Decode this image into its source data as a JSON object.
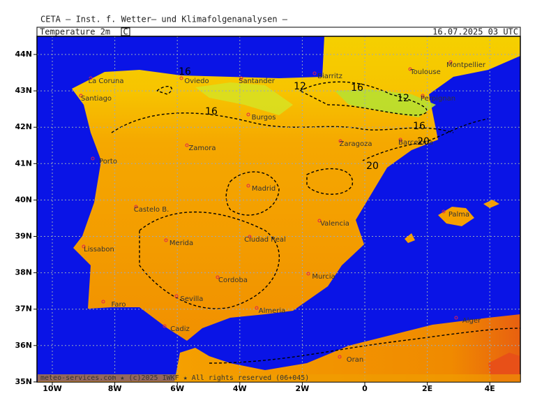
{
  "header": {
    "title": "CETA — Inst. f. Wetter— und Klimafolgenanalysen —",
    "field": "Temperature 2m",
    "unit": "C",
    "valid_time": "16.07.2025 03 UTC"
  },
  "map": {
    "lat_labels": [
      "44N",
      "43N",
      "42N",
      "41N",
      "40N",
      "39N",
      "38N",
      "37N",
      "36N",
      "35N"
    ],
    "lon_labels": [
      "10W",
      "8W",
      "6W",
      "4W",
      "2W",
      "0",
      "2E",
      "4E"
    ],
    "cities": [
      "La Coruna",
      "Oviedo",
      "Santander",
      "Biarritz",
      "Toulouse",
      "Montpellier",
      "Santiago",
      "Burgos",
      "Perpignan",
      "Zamora",
      "Zaragoza",
      "Barcelona",
      "Porto",
      "Madrid",
      "Castelo B.",
      "Valencia",
      "Palma",
      "Merida",
      "Ciudad Real",
      "Lissabon",
      "Murcia",
      "Cordoba",
      "Sevilla",
      "Faro",
      "Almeria",
      "Cadiz",
      "Alger",
      "Oran"
    ],
    "contour_labels": [
      16,
      16,
      12,
      16,
      12,
      16,
      20,
      20
    ]
  },
  "footer": "meteo-services.com ★ (c)2025 IWKF ★ All rights reserved (06+045)"
}
